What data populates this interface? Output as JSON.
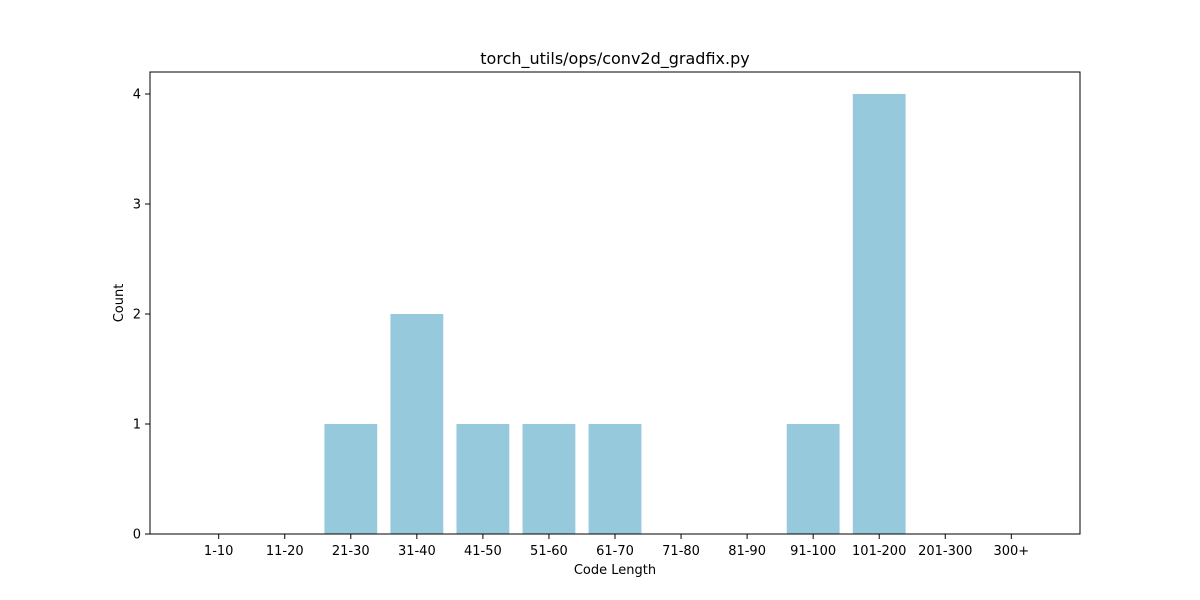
{
  "chart_data": {
    "type": "bar",
    "title": "torch_utils/ops/conv2d_gradfix.py",
    "xlabel": "Code Length",
    "ylabel": "Count",
    "categories": [
      "1-10",
      "11-20",
      "21-30",
      "31-40",
      "41-50",
      "51-60",
      "61-70",
      "71-80",
      "81-90",
      "91-100",
      "101-200",
      "201-300",
      "300+"
    ],
    "values": [
      0,
      0,
      1,
      2,
      1,
      1,
      1,
      0,
      0,
      1,
      4,
      0,
      0
    ],
    "ylim": [
      0,
      4.2
    ],
    "yticks": [
      "0",
      "1",
      "2",
      "3",
      "4"
    ],
    "bar_color": "#96c9dc",
    "grid": false,
    "legend": "none"
  }
}
